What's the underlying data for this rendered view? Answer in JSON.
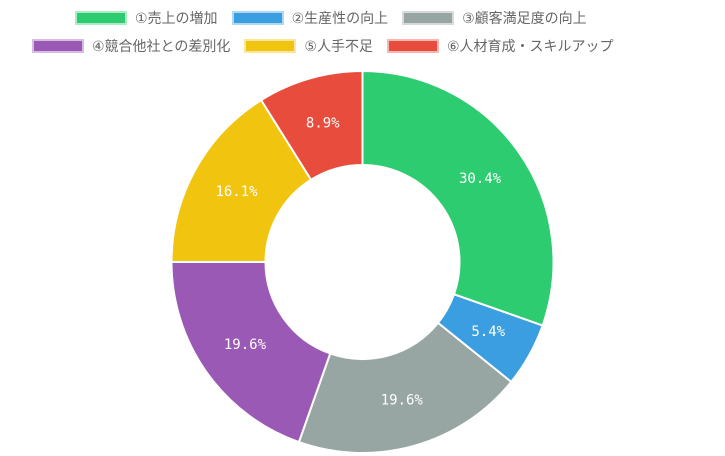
{
  "chart_data": {
    "type": "pie",
    "variant": "doughnut",
    "categories": [
      "①売上の増加",
      "②生産性の向上",
      "③顧客満足度の向上",
      "④競合他社との差別化",
      "⑤人手不足",
      "⑥人材育成・スキルアップ"
    ],
    "values": [
      30.4,
      5.4,
      19.6,
      19.6,
      16.1,
      8.9
    ],
    "value_labels": [
      "30.4%",
      "5.4%",
      "19.6%",
      "19.6%",
      "16.1%",
      "8.9%"
    ],
    "colors": [
      "#2ecc71",
      "#3a9ee0",
      "#97a5a3",
      "#9b59b6",
      "#f1c40f",
      "#e74c3c"
    ],
    "legend_placement": "top"
  }
}
